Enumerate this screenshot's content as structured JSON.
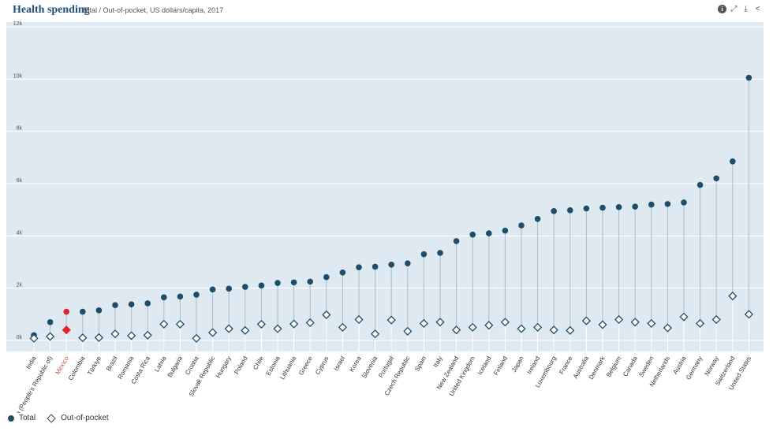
{
  "header": {
    "title": "Health spending",
    "subtitle": "Total / Out-of-pocket, US dollars/capita, 2017",
    "icons": [
      "info-icon",
      "expand-icon",
      "download-icon",
      "share-icon"
    ]
  },
  "colors": {
    "background_plot": "#dfe9f1",
    "total": "#1e4d6b",
    "highlight": "#e4242b",
    "highlight_label": "#c0504d",
    "gridline": "#ffffff",
    "stem": "#a9bccb"
  },
  "legend": {
    "total": "Total",
    "oop": "Out-of-pocket"
  },
  "chart_data": {
    "type": "scatter",
    "highlighted": "Mexico",
    "y_ticks": [
      "0k",
      "2k",
      "4k",
      "6k",
      "8k",
      "10k",
      "12k"
    ],
    "ylim": [
      0,
      12000
    ],
    "categories": [
      "India",
      "China (People's Republic of)",
      "Mexico",
      "Colombia",
      "Türkiye",
      "Brazil",
      "Romania",
      "Costa Rica",
      "Latvia",
      "Bulgaria",
      "Croatia",
      "Slovak Republic",
      "Hungary",
      "Poland",
      "Chile",
      "Estonia",
      "Lithuania",
      "Greece",
      "Cyprus",
      "Israel",
      "Korea",
      "Slovenia",
      "Portugal",
      "Czech Republic",
      "Spain",
      "Italy",
      "New Zealand",
      "United Kingdom",
      "Iceland",
      "Finland",
      "Japan",
      "Ireland",
      "Luxembourg",
      "France",
      "Australia",
      "Denmark",
      "Belgium",
      "Canada",
      "Sweden",
      "Netherlands",
      "Austria",
      "Germany",
      "Norway",
      "Switzerland",
      "United States"
    ],
    "series": [
      {
        "name": "Total",
        "values": [
          200,
          700,
          1100,
          1100,
          1150,
          1350,
          1380,
          1420,
          1650,
          1680,
          1750,
          1950,
          1980,
          2050,
          2100,
          2200,
          2220,
          2250,
          2420,
          2600,
          2800,
          2820,
          2900,
          2950,
          3300,
          3350,
          3800,
          4050,
          4100,
          4200,
          4400,
          4650,
          4950,
          4980,
          5050,
          5080,
          5100,
          5120,
          5200,
          5220,
          5280,
          5950,
          6200,
          6850,
          10050
        ]
      },
      {
        "name": "Out-of-pocket",
        "values": [
          80,
          150,
          400,
          100,
          110,
          250,
          180,
          200,
          620,
          620,
          80,
          300,
          450,
          380,
          620,
          450,
          630,
          680,
          980,
          500,
          800,
          250,
          780,
          350,
          650,
          700,
          400,
          500,
          580,
          700,
          450,
          500,
          400,
          380,
          750,
          600,
          800,
          700,
          650,
          480,
          900,
          650,
          800,
          1700,
          1000
        ]
      }
    ]
  }
}
